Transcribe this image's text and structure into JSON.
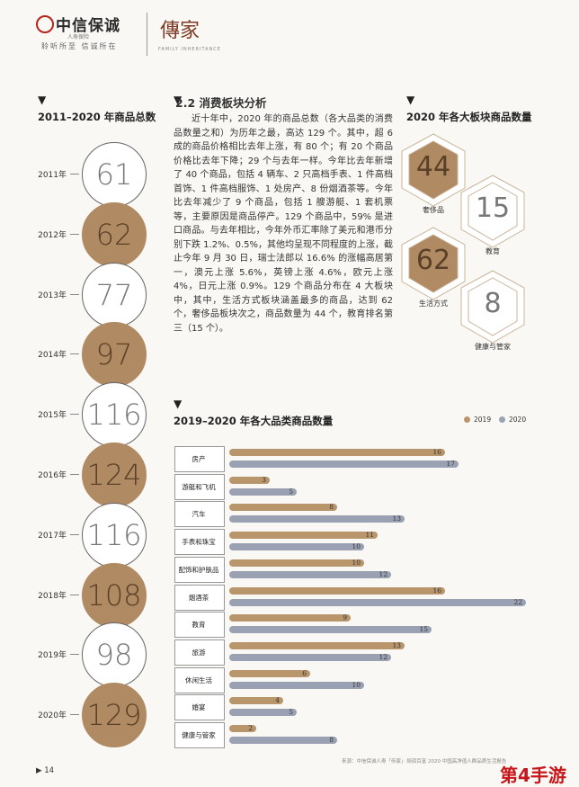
{
  "header": {
    "brand": "中信保诚",
    "brand_tag": "人寿保险",
    "slogan": "聆听所至 信诚所在",
    "seal": "傳家",
    "seal_sub": "FAMILY INHERITANCE"
  },
  "left_section": {
    "title": "2011–2020 年商品总数",
    "items": [
      {
        "year": "2011年",
        "value": "61",
        "style": "outline"
      },
      {
        "year": "2012年",
        "value": "62",
        "style": "filled"
      },
      {
        "year": "2013年",
        "value": "77",
        "style": "outline"
      },
      {
        "year": "2014年",
        "value": "97",
        "style": "filled"
      },
      {
        "year": "2015年",
        "value": "116",
        "style": "outline"
      },
      {
        "year": "2016年",
        "value": "124",
        "style": "filled"
      },
      {
        "year": "2017年",
        "value": "116",
        "style": "outline"
      },
      {
        "year": "2018年",
        "value": "108",
        "style": "filled"
      },
      {
        "year": "2019年",
        "value": "98",
        "style": "outline"
      },
      {
        "year": "2020年",
        "value": "129",
        "style": "filled"
      }
    ]
  },
  "article": {
    "heading": "2.2 消费板块分析",
    "body": "近十年中，2020 年的商品总数（各大品类的消费品数量之和）为历年之最，高达 129 个。其中，超 6 成的商品价格相比去年上涨，有 80 个；有 20 个商品价格比去年下降；29 个与去年一样。今年比去年新增了 40 个商品，包括 4 辆车、2 只高档手表、1 件高档首饰、1 件高档服饰、1 处房产、8 份烟酒茶等。今年比去年减少了 9 个商品，包括 1 艘游艇、1 套机票等，主要原因是商品停产。129 个商品中，59% 是进口商品。与去年相比，今年外币汇率除了美元和港币分别下跌 1.2%、0.5%，其他均呈现不同程度的上涨，截止今年 9 月 30 日，瑞士法郎以 16.6% 的涨幅高居第一，澳元上涨 5.6%，英镑上涨 4.6%，欧元上涨 4%，日元上涨 0.9%。129 个商品分布在 4 大板块中，其中，生活方式板块涵盖最多的商品，达到 62 个，奢侈品板块次之，商品数量为 44 个，教育排名第三（15 个）。"
  },
  "hex_section": {
    "title": "2020 年各大板块商品数量",
    "items": [
      {
        "label": "奢侈品",
        "value": "44",
        "filled": true
      },
      {
        "label": "教育",
        "value": "15",
        "filled": false
      },
      {
        "label": "生活方式",
        "value": "62",
        "filled": true
      },
      {
        "label": "健康与管家",
        "value": "8",
        "filled": false
      }
    ]
  },
  "colors": {
    "c2019": "#b8956b",
    "c2020": "#9aa1b3",
    "accent": "#b08a62"
  },
  "chart_data": {
    "type": "bar",
    "title": "2019–2020 年各大品类商品数量",
    "categories": [
      "房产",
      "游艇和飞机",
      "汽车",
      "手表和珠宝",
      "配饰和护肤品",
      "烟酒茶",
      "教育",
      "旅游",
      "休闲生活",
      "婚宴",
      "健康与管家"
    ],
    "series": [
      {
        "name": "2019",
        "values": [
          16,
          3,
          8,
          11,
          10,
          16,
          9,
          13,
          6,
          4,
          2
        ]
      },
      {
        "name": "2020",
        "values": [
          17,
          5,
          13,
          10,
          12,
          22,
          15,
          12,
          10,
          5,
          8
        ]
      }
    ],
    "legend": "top-right",
    "orientation": "horizontal",
    "xlim": [
      0,
      22
    ]
  },
  "footer": {
    "source": "来源：中信保诚人寿「传家」· 胡润百富 2020 中国高净值人群品质生活报告",
    "page": "14"
  },
  "watermark": "第4手游"
}
